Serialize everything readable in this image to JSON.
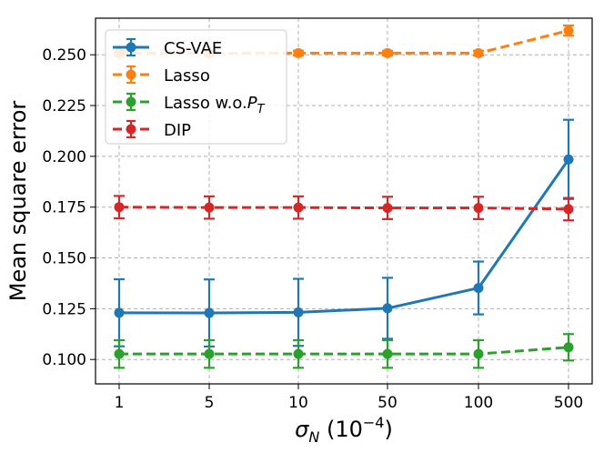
{
  "chart_data": {
    "type": "line",
    "title": "",
    "xlabel": "σ_N (10^-4)",
    "xlabel_parts": {
      "sigma": "σ",
      "sub": "N",
      "open": " (10",
      "sup": "−4",
      "close": ")"
    },
    "ylabel": "Mean square error",
    "categories": [
      "1",
      "5",
      "10",
      "50",
      "100",
      "500"
    ],
    "ylim": [
      0.088,
      0.268
    ],
    "yticks": [
      0.1,
      0.125,
      0.15,
      0.175,
      0.2,
      0.225,
      0.25
    ],
    "ytick_labels": [
      "0.100",
      "0.125",
      "0.150",
      "0.175",
      "0.200",
      "0.225",
      "0.250"
    ],
    "grid": true,
    "legend_position": "top-left",
    "series": [
      {
        "name": "CS-VAE",
        "label_text": "CS-VAE",
        "color": "#1f77b4",
        "linestyle": "solid",
        "values": [
          0.123,
          0.1229,
          0.1232,
          0.1252,
          0.1352,
          0.1985
        ],
        "errors": [
          0.0165,
          0.0165,
          0.0165,
          0.015,
          0.013,
          0.0195
        ]
      },
      {
        "name": "Lasso",
        "label_text": "Lasso",
        "color": "#ff7f0e",
        "linestyle": "dashed",
        "values": [
          0.2508,
          0.2508,
          0.2508,
          0.2508,
          0.2508,
          0.2619
        ],
        "errors": [
          0.0012,
          0.0012,
          0.0012,
          0.0012,
          0.0012,
          0.0025
        ]
      },
      {
        "name": "Lasso w.o. P_T",
        "label_text": "Lasso w.o.",
        "label_math": "P",
        "label_sub": "T",
        "color": "#2ca02c",
        "linestyle": "dashed",
        "values": [
          0.1027,
          0.1027,
          0.1027,
          0.1027,
          0.1027,
          0.106
        ],
        "errors": [
          0.0068,
          0.0068,
          0.0068,
          0.0068,
          0.0068,
          0.0065
        ]
      },
      {
        "name": "DIP",
        "label_text": "DIP",
        "color": "#d62728",
        "linestyle": "dashed",
        "values": [
          0.175,
          0.1748,
          0.1748,
          0.1746,
          0.1746,
          0.174
        ],
        "errors": [
          0.0055,
          0.0055,
          0.0055,
          0.0055,
          0.0055,
          0.0055
        ]
      }
    ]
  }
}
